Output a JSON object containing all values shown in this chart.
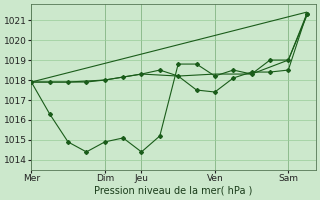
{
  "background_color": "#cce8cc",
  "grid_color": "#99cc99",
  "line_color": "#1a5c1a",
  "xlabel": "Pression niveau de la mer( hPa )",
  "ylim": [
    1013.5,
    1021.8
  ],
  "yticks": [
    1014,
    1015,
    1016,
    1017,
    1018,
    1019,
    1020,
    1021
  ],
  "day_labels": [
    "Mer",
    "Dim",
    "Jeu",
    "Ven",
    "Sam"
  ],
  "day_x": [
    0,
    4,
    6,
    10,
    14
  ],
  "xlim": [
    0,
    15.5
  ],
  "series1_x": [
    0,
    1,
    2,
    3,
    4,
    5,
    6,
    7,
    8,
    9,
    10,
    11,
    12,
    13,
    14,
    15
  ],
  "series1_y": [
    1017.9,
    1016.3,
    1014.9,
    1014.4,
    1014.9,
    1015.1,
    1014.4,
    1015.2,
    1018.8,
    1018.8,
    1018.2,
    1018.5,
    1018.3,
    1019.0,
    1019.0,
    1021.3
  ],
  "series2_x": [
    0,
    2,
    4,
    6,
    8,
    10,
    12,
    14,
    15
  ],
  "series2_y": [
    1017.9,
    1017.9,
    1018.0,
    1018.3,
    1018.2,
    1018.3,
    1018.3,
    1019.0,
    1021.2
  ],
  "series3_x": [
    0,
    15
  ],
  "series3_y": [
    1017.9,
    1021.4
  ],
  "series4_x": [
    0,
    1,
    2,
    3,
    4,
    5,
    6,
    7,
    8,
    9,
    10,
    11,
    12,
    13,
    14,
    15
  ],
  "series4_y": [
    1017.9,
    1017.9,
    1017.9,
    1017.9,
    1018.0,
    1018.15,
    1018.3,
    1018.5,
    1018.2,
    1017.5,
    1017.4,
    1018.1,
    1018.4,
    1018.4,
    1018.5,
    1021.3
  ]
}
